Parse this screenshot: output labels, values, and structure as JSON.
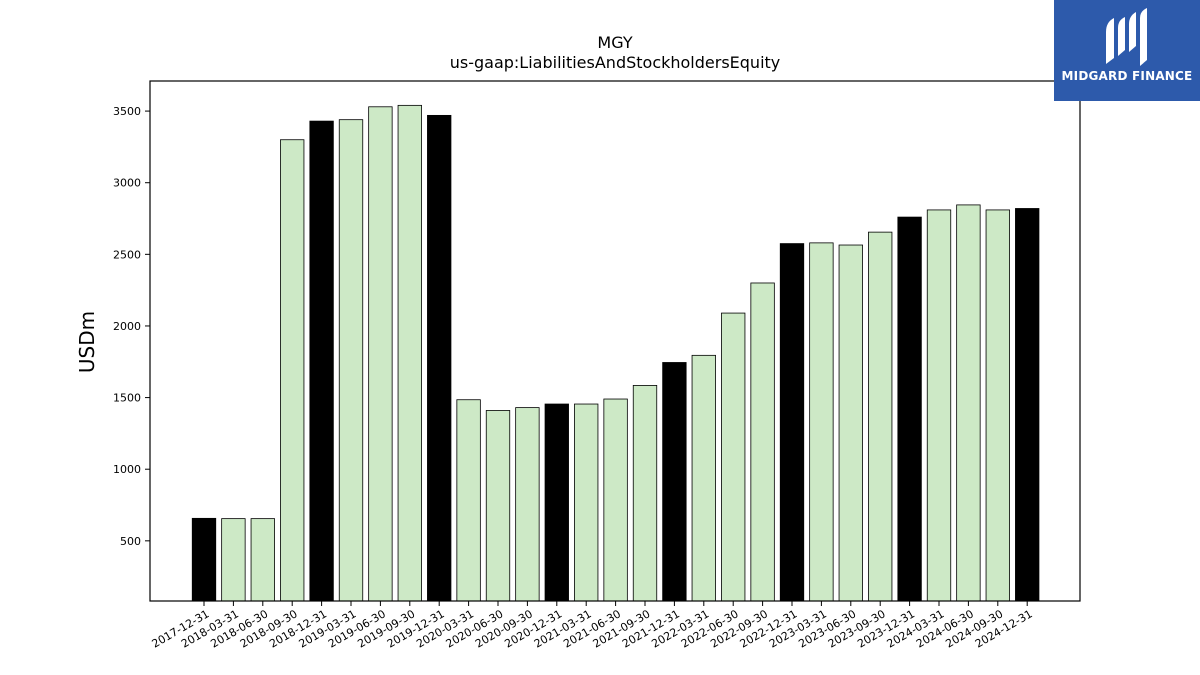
{
  "chart_data": {
    "type": "bar",
    "title": "MGY",
    "subtitle": "us-gaap:LiabilitiesAndStockholdersEquity",
    "ylabel": "USDm",
    "xlabel": "",
    "ylim": [
      80,
      3710
    ],
    "yticks": [
      500,
      1000,
      1500,
      2000,
      2500,
      3000,
      3500
    ],
    "grid": false,
    "categories": [
      "2017-12-31",
      "2018-03-31",
      "2018-06-30",
      "2018-09-30",
      "2018-12-31",
      "2019-03-31",
      "2019-06-30",
      "2019-09-30",
      "2019-12-31",
      "2020-03-31",
      "2020-06-30",
      "2020-09-30",
      "2020-12-31",
      "2021-03-31",
      "2021-06-30",
      "2021-09-30",
      "2021-12-31",
      "2022-03-31",
      "2022-06-30",
      "2022-09-30",
      "2022-12-31",
      "2023-03-31",
      "2023-06-30",
      "2023-09-30",
      "2023-12-31",
      "2024-03-31",
      "2024-06-30",
      "2024-09-30",
      "2024-12-31"
    ],
    "values": [
      657,
      655,
      655,
      3300,
      3430,
      3440,
      3530,
      3540,
      3470,
      1485,
      1410,
      1430,
      1455,
      1455,
      1490,
      1585,
      1745,
      1795,
      2090,
      2300,
      2575,
      2580,
      2565,
      2655,
      2760,
      2810,
      2845,
      2810,
      2820
    ],
    "fiscal_year_end_color": "#000000",
    "quarter_color": "#cde9c6",
    "edge_color": "#000000"
  },
  "logo": {
    "text": "MIDGARD FINANCE",
    "background": "#2d5aab",
    "text_color": "#ffffff"
  }
}
